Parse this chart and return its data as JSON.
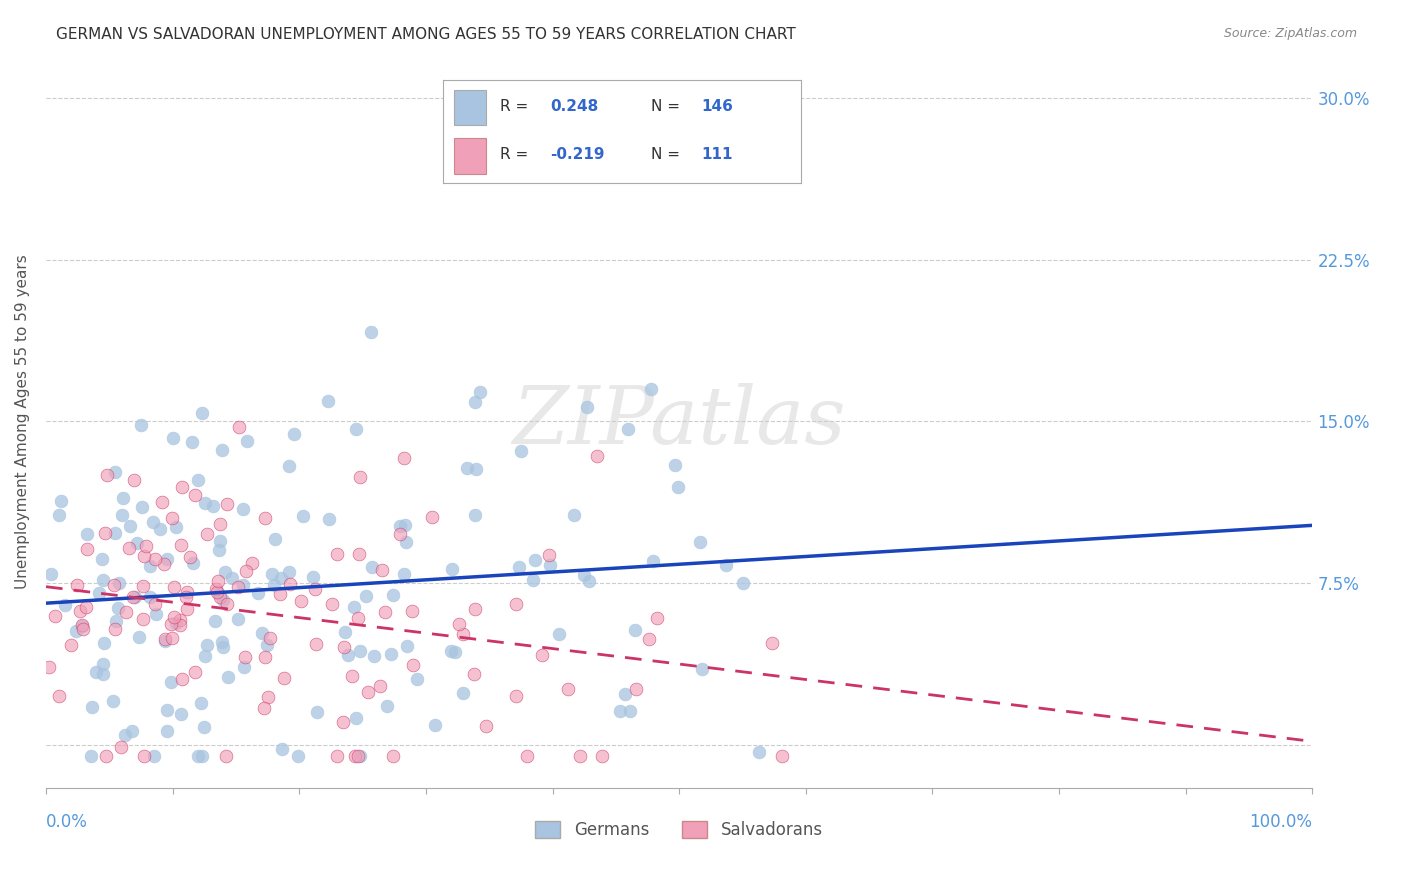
{
  "title": "GERMAN VS SALVADORAN UNEMPLOYMENT AMONG AGES 55 TO 59 YEARS CORRELATION CHART",
  "source": "Source: ZipAtlas.com",
  "ylabel": "Unemployment Among Ages 55 to 59 years",
  "xlim": [
    0.0,
    1.0
  ],
  "ylim": [
    -0.02,
    0.32
  ],
  "yticks": [
    0.0,
    0.075,
    0.15,
    0.225,
    0.3
  ],
  "ytick_labels": [
    "",
    "7.5%",
    "15.0%",
    "22.5%",
    "30.0%"
  ],
  "german_R": 0.248,
  "german_N": 146,
  "salvadoran_R": -0.219,
  "salvadoran_N": 111,
  "german_color": "#a8c4e0",
  "german_line_color": "#1a44bb",
  "salvadoran_color": "#f0a0b8",
  "salvadoran_line_color": "#cc3366",
  "background_color": "#ffffff",
  "grid_color": "#cccccc",
  "title_color": "#333333",
  "axis_label_color": "#5599dd",
  "watermark_text": "ZIPatlas"
}
